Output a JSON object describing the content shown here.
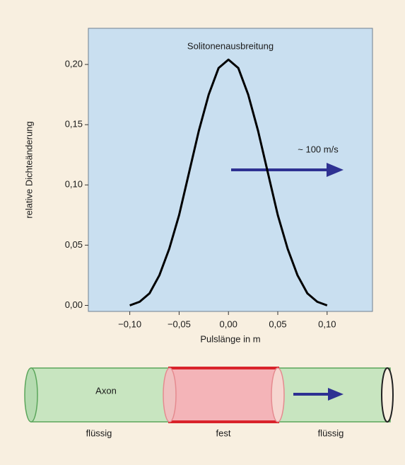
{
  "chart_data": {
    "type": "line",
    "title": "Solitonenausbreitung",
    "annotation": "~ 100 m/s",
    "x_label": "Pulslänge in m",
    "y_label": "relative Dichteänderung",
    "x": [
      -0.1,
      -0.09,
      -0.08,
      -0.07,
      -0.06,
      -0.05,
      -0.04,
      -0.03,
      -0.02,
      -0.01,
      0.0,
      0.01,
      0.02,
      0.03,
      0.04,
      0.05,
      0.06,
      0.07,
      0.08,
      0.09,
      0.1
    ],
    "values": [
      0.0,
      0.003,
      0.01,
      0.025,
      0.047,
      0.075,
      0.11,
      0.145,
      0.175,
      0.197,
      0.204,
      0.197,
      0.175,
      0.145,
      0.11,
      0.075,
      0.047,
      0.025,
      0.01,
      0.003,
      0.0
    ],
    "color": "#000000",
    "xlim": [
      -0.142,
      0.146
    ],
    "ylim": [
      -0.005,
      0.23
    ],
    "xticks": [
      {
        "value": -0.1,
        "label": "−0,10"
      },
      {
        "value": -0.05,
        "label": "−0,05"
      },
      {
        "value": 0,
        "label": "0,00"
      },
      {
        "value": 0.05,
        "label": "0,05"
      },
      {
        "value": 0.1,
        "label": "0,10"
      }
    ],
    "yticks": [
      {
        "value": 0,
        "label": "0,00"
      },
      {
        "value": 0.05,
        "label": "0,05"
      },
      {
        "value": 0.1,
        "label": "0,10"
      },
      {
        "value": 0.15,
        "label": "0,15"
      },
      {
        "value": 0.2,
        "label": "0,20"
      }
    ]
  },
  "axon_diagram": {
    "name": "Axon",
    "labels": [
      "flüssig",
      "fest",
      "flüssig"
    ]
  }
}
